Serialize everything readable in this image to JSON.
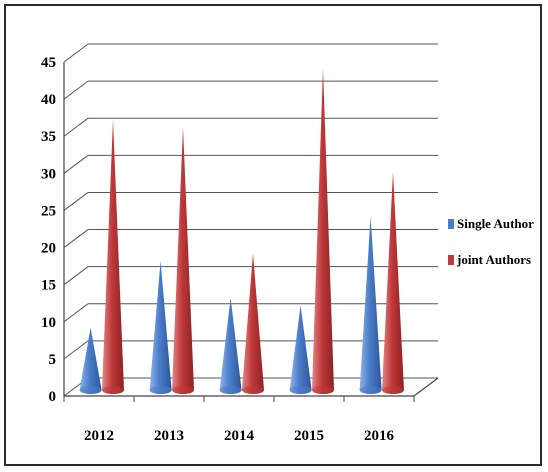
{
  "chart_data": {
    "type": "bar",
    "title": "",
    "xlabel": "",
    "ylabel": "",
    "categories": [
      "2012",
      "2013",
      "2014",
      "2015",
      "2016"
    ],
    "series": [
      {
        "name": "Single Author",
        "values": [
          8,
          17,
          12,
          11,
          23
        ],
        "color": "#4a7cc9"
      },
      {
        "name": "joint Authors",
        "values": [
          36,
          35,
          18,
          43,
          29
        ],
        "color": "#c0393b"
      }
    ],
    "ylim": [
      0,
      45
    ],
    "yticks": [
      "0",
      "5",
      "10",
      "15",
      "20",
      "25",
      "30",
      "35",
      "40",
      "45"
    ],
    "grid": true,
    "legend_position": "right",
    "mark_shape": "cone"
  }
}
